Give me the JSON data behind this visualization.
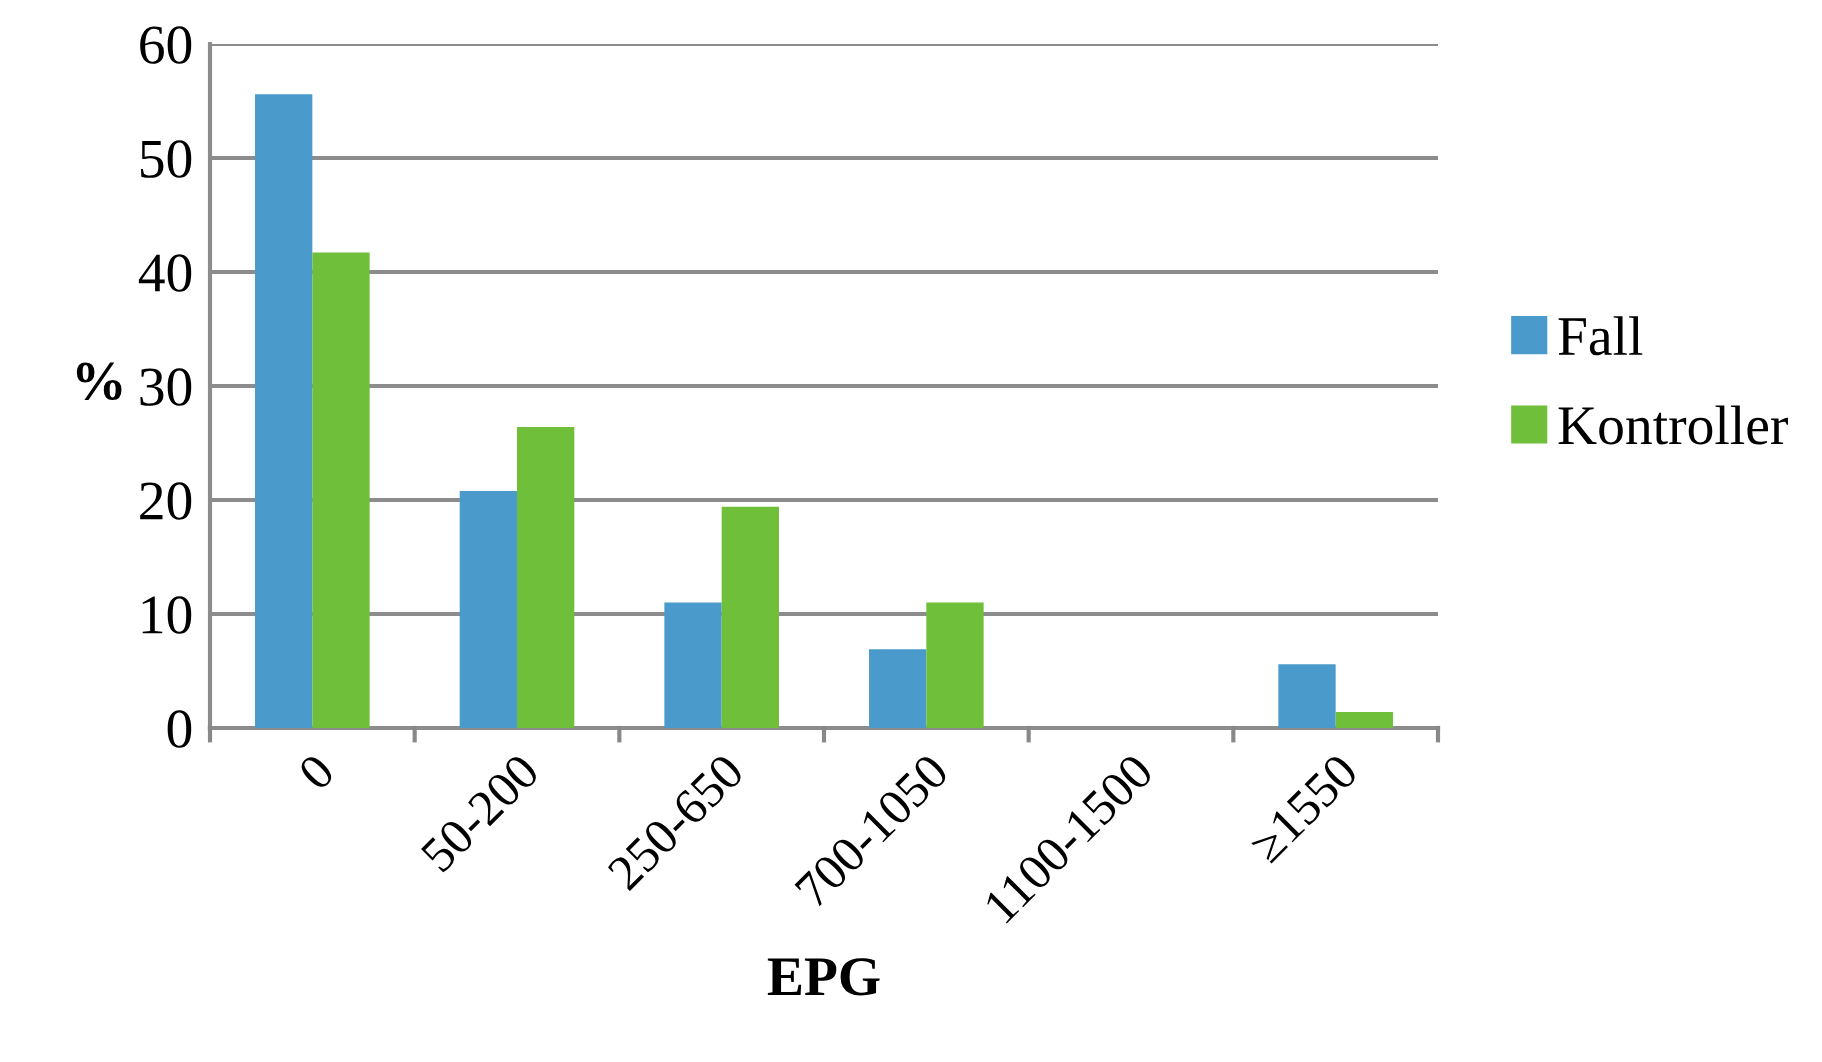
{
  "chart_data": {
    "type": "bar",
    "xlabel": "EPG",
    "ylabel": "%",
    "categories": [
      "0",
      "50-200",
      "250-650",
      "700-1050",
      "1100-1500",
      "≥1550"
    ],
    "series": [
      {
        "name": "Fall",
        "color": "#4a9bcb",
        "values": [
          55.6,
          20.8,
          11.0,
          6.9,
          0,
          5.6
        ]
      },
      {
        "name": "Kontroller",
        "color": "#6fbf3a",
        "values": [
          41.7,
          26.4,
          19.4,
          11.0,
          0,
          1.4
        ]
      }
    ],
    "ylim": [
      0,
      60
    ],
    "yticks": [
      0,
      10,
      20,
      30,
      40,
      50,
      60
    ],
    "grid": "y",
    "legend": "right"
  }
}
